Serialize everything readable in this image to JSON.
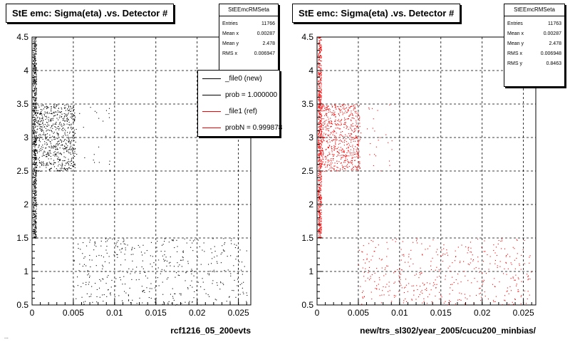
{
  "chart_data": [
    {
      "type": "scatter",
      "title": "StE emc: Sigma(eta) .vs. Detector #",
      "xlabel": "rcf1216_05_200evts",
      "ylabel": "",
      "xlim": [
        0,
        0.0265
      ],
      "ylim": [
        0.5,
        4.5
      ],
      "xticks": [
        "0",
        "0.005",
        "0.01",
        "0.015",
        "0.02",
        "0.025"
      ],
      "yticks": [
        "0.5",
        "1",
        "1.5",
        "2",
        "2.5",
        "3",
        "3.5",
        "4",
        "4.5"
      ],
      "grid": true,
      "series": [
        {
          "name": "_file0 (new)",
          "color": "#000000",
          "clusters": [
            {
              "x": [
                0.0001,
                0.0005
              ],
              "y": [
                1.5,
                4.5
              ],
              "n": 700
            },
            {
              "x": [
                0.0005,
                0.0052
              ],
              "y": [
                2.5,
                3.5
              ],
              "n": 650
            },
            {
              "x": [
                0.0052,
                0.0095
              ],
              "y": [
                2.5,
                3.5
              ],
              "n": 25
            },
            {
              "x": [
                0.005,
                0.026
              ],
              "y": [
                0.5,
                1.5
              ],
              "n": 420
            }
          ]
        }
      ],
      "stats": {
        "name": "StEEmcRMSeta",
        "entries": "11766",
        "mean_x": "0.00287",
        "mean_y": "2.478",
        "rms_x": "0.006947"
      },
      "legend": {
        "placement": "top-right",
        "items": [
          {
            "label": "_file0 (new)",
            "color": "#000000"
          },
          {
            "label": "prob = 1.000000",
            "color": "#000000"
          },
          {
            "label": "_file1 (ref)",
            "color": "#ff0000"
          },
          {
            "label": "probN = 0.999878",
            "color": "#ff0000"
          }
        ]
      }
    },
    {
      "type": "scatter",
      "title": "StE emc: Sigma(eta) .vs. Detector #",
      "xlabel": "new/trs_sl302/year_2005/cucu200_minbias/",
      "ylabel": "",
      "xlim": [
        0,
        0.0265
      ],
      "ylim": [
        0.5,
        4.5
      ],
      "xticks": [
        "0",
        "0.005",
        "0.01",
        "0.015",
        "0.02",
        "0.025"
      ],
      "yticks": [
        "0.5",
        "1",
        "1.5",
        "2",
        "2.5",
        "3",
        "3.5",
        "4",
        "4.5"
      ],
      "grid": true,
      "series": [
        {
          "name": "_file1 (ref)",
          "color": "#ff0000",
          "clusters": [
            {
              "x": [
                0.0001,
                0.0005
              ],
              "y": [
                1.5,
                4.5
              ],
              "n": 700
            },
            {
              "x": [
                0.0005,
                0.0052
              ],
              "y": [
                2.5,
                3.5
              ],
              "n": 650
            },
            {
              "x": [
                0.0052,
                0.0095
              ],
              "y": [
                2.5,
                3.5
              ],
              "n": 25
            },
            {
              "x": [
                0.005,
                0.026
              ],
              "y": [
                0.5,
                1.5
              ],
              "n": 420
            }
          ]
        }
      ],
      "stats": {
        "name": "StEEmcRMSeta",
        "entries": "11763",
        "mean_x": "0.00287",
        "mean_y": "2.478",
        "rms_x": "0.006948",
        "rms_y": "0.8463"
      }
    }
  ],
  "stats_labels": {
    "entries": "Entries",
    "mean_x": "Mean x",
    "mean_y": "Mean y",
    "rms_x": "RMS x",
    "rms_y": "RMS y"
  },
  "footer": "..."
}
